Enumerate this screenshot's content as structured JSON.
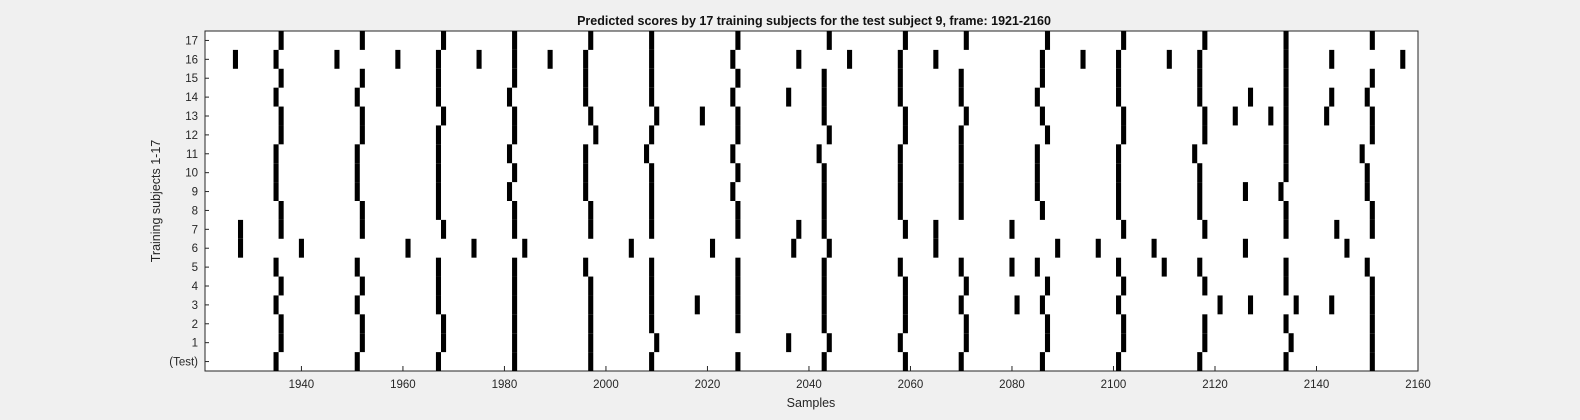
{
  "chart_data": {
    "type": "heatmap",
    "title": "Predicted scores by 17 training subjects for the test subject 9, frame: 1921-2160",
    "xlabel": "Samples",
    "ylabel": "Training subjects 1-17",
    "xlim": [
      1921,
      2160
    ],
    "x_ticks": [
      1940,
      1960,
      1980,
      2000,
      2020,
      2040,
      2060,
      2080,
      2100,
      2120,
      2140,
      2160
    ],
    "rows": [
      {
        "label": "(Test)",
        "samples": [
          1935,
          1951,
          1967,
          1982,
          1997,
          2009,
          2026,
          2043,
          2059,
          2070,
          2086,
          2101,
          2117,
          2134,
          2151
        ]
      },
      {
        "label": "1",
        "samples": [
          1936,
          1952,
          1968,
          1982,
          1997,
          2010,
          2036,
          2044,
          2058,
          2071,
          2087,
          2102,
          2118,
          2135,
          2151
        ]
      },
      {
        "label": "2",
        "samples": [
          1936,
          1952,
          1968,
          1982,
          1997,
          2009,
          2026,
          2043,
          2059,
          2071,
          2087,
          2102,
          2118,
          2134,
          2151
        ]
      },
      {
        "label": "3",
        "samples": [
          1935,
          1951,
          1967,
          1982,
          1997,
          2009,
          2018,
          2026,
          2043,
          2059,
          2070,
          2081,
          2086,
          2101,
          2121,
          2127,
          2136,
          2143,
          2151
        ]
      },
      {
        "label": "4",
        "samples": [
          1936,
          1952,
          1967,
          1982,
          1997,
          2009,
          2026,
          2043,
          2059,
          2071,
          2087,
          2102,
          2118,
          2134,
          2151
        ]
      },
      {
        "label": "5",
        "samples": [
          1935,
          1951,
          1967,
          1982,
          1996,
          2009,
          2026,
          2043,
          2058,
          2070,
          2080,
          2085,
          2101,
          2110,
          2117,
          2134,
          2150
        ]
      },
      {
        "label": "6",
        "samples": [
          1928,
          1940,
          1961,
          1974,
          1984,
          2005,
          2021,
          2037,
          2044,
          2065,
          2089,
          2097,
          2108,
          2126,
          2146
        ]
      },
      {
        "label": "7",
        "samples": [
          1928,
          1936,
          1952,
          1968,
          1982,
          1997,
          2009,
          2026,
          2038,
          2043,
          2059,
          2065,
          2080,
          2102,
          2118,
          2134,
          2144,
          2151
        ]
      },
      {
        "label": "8",
        "samples": [
          1936,
          1952,
          1967,
          1982,
          1997,
          2009,
          2026,
          2043,
          2058,
          2070,
          2086,
          2101,
          2117,
          2134,
          2151
        ]
      },
      {
        "label": "9",
        "samples": [
          1935,
          1951,
          1967,
          1981,
          1996,
          2009,
          2025,
          2043,
          2058,
          2070,
          2085,
          2101,
          2117,
          2126,
          2133,
          2150
        ]
      },
      {
        "label": "10",
        "samples": [
          1935,
          1951,
          1967,
          1982,
          1996,
          2009,
          2026,
          2043,
          2058,
          2070,
          2085,
          2101,
          2117,
          2134,
          2150
        ]
      },
      {
        "label": "11",
        "samples": [
          1935,
          1951,
          1967,
          1981,
          1996,
          2008,
          2025,
          2042,
          2058,
          2070,
          2085,
          2101,
          2116,
          2134,
          2149
        ]
      },
      {
        "label": "12",
        "samples": [
          1936,
          1952,
          1967,
          1982,
          1998,
          2009,
          2026,
          2044,
          2059,
          2070,
          2087,
          2102,
          2118,
          2134,
          2151
        ]
      },
      {
        "label": "13",
        "samples": [
          1936,
          1952,
          1968,
          1982,
          1997,
          2010,
          2019,
          2026,
          2043,
          2059,
          2071,
          2086,
          2102,
          2118,
          2124,
          2131,
          2134,
          2142,
          2151
        ]
      },
      {
        "label": "14",
        "samples": [
          1935,
          1951,
          1967,
          1981,
          1996,
          2009,
          2025,
          2036,
          2043,
          2058,
          2070,
          2085,
          2101,
          2117,
          2127,
          2134,
          2143,
          2150
        ]
      },
      {
        "label": "15",
        "samples": [
          1936,
          1952,
          1967,
          1982,
          1996,
          2009,
          2026,
          2043,
          2058,
          2070,
          2086,
          2101,
          2117,
          2134,
          2151
        ]
      },
      {
        "label": "16",
        "samples": [
          1927,
          1935,
          1947,
          1959,
          1967,
          1975,
          1982,
          1989,
          1996,
          2009,
          2025,
          2038,
          2048,
          2058,
          2065,
          2086,
          2094,
          2101,
          2111,
          2117,
          2134,
          2143,
          2157
        ]
      },
      {
        "label": "17",
        "samples": [
          1936,
          1952,
          1968,
          1982,
          1997,
          2009,
          2026,
          2044,
          2059,
          2071,
          2087,
          2102,
          2118,
          2134,
          2151
        ]
      }
    ],
    "grid": false,
    "legend": "none",
    "colors": {
      "mark": "#000000",
      "plot_bg": "#ffffff",
      "figure_bg": "#f0f0f0",
      "axis": "#262626"
    }
  }
}
